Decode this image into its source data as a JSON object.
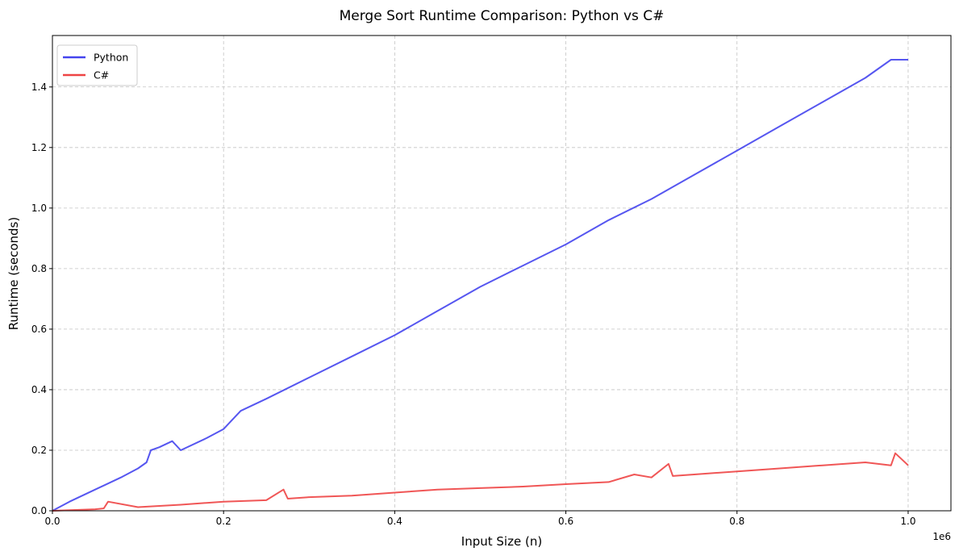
{
  "chart_data": {
    "type": "line",
    "title": "Merge Sort Runtime Comparison: Python vs C#",
    "xlabel": "Input Size (n)",
    "ylabel": "Runtime (seconds)",
    "x_offset_label": "1e6",
    "xlim": [
      0,
      1.05
    ],
    "ylim": [
      0,
      1.57
    ],
    "x_ticks": [
      0.0,
      0.2,
      0.4,
      0.6,
      0.8,
      1.0
    ],
    "x_tick_labels": [
      "0.0",
      "0.2",
      "0.4",
      "0.6",
      "0.8",
      "1.0"
    ],
    "y_ticks": [
      0.0,
      0.2,
      0.4,
      0.6,
      0.8,
      1.0,
      1.2,
      1.4
    ],
    "y_tick_labels": [
      "0.0",
      "0.2",
      "0.4",
      "0.6",
      "0.8",
      "1.0",
      "1.2",
      "1.4"
    ],
    "grid": true,
    "legend_position": "top-left",
    "series": [
      {
        "name": "Python",
        "color": "#4444ee",
        "x": [
          0.0,
          0.02,
          0.05,
          0.08,
          0.1,
          0.11,
          0.115,
          0.125,
          0.14,
          0.15,
          0.18,
          0.2,
          0.22,
          0.25,
          0.3,
          0.35,
          0.4,
          0.45,
          0.5,
          0.55,
          0.6,
          0.65,
          0.7,
          0.75,
          0.8,
          0.85,
          0.9,
          0.95,
          0.98,
          1.0
        ],
        "values": [
          0.0,
          0.03,
          0.07,
          0.11,
          0.14,
          0.16,
          0.2,
          0.21,
          0.23,
          0.2,
          0.24,
          0.27,
          0.33,
          0.37,
          0.44,
          0.51,
          0.58,
          0.66,
          0.74,
          0.81,
          0.88,
          0.96,
          1.03,
          1.11,
          1.19,
          1.27,
          1.35,
          1.43,
          1.49,
          1.49
        ]
      },
      {
        "name": "C#",
        "color": "#ee4444",
        "x": [
          0.0,
          0.05,
          0.06,
          0.065,
          0.1,
          0.15,
          0.2,
          0.25,
          0.27,
          0.275,
          0.3,
          0.35,
          0.4,
          0.45,
          0.5,
          0.55,
          0.6,
          0.65,
          0.68,
          0.7,
          0.72,
          0.725,
          0.75,
          0.8,
          0.85,
          0.9,
          0.95,
          0.98,
          0.985,
          1.0
        ],
        "values": [
          0.0,
          0.005,
          0.008,
          0.03,
          0.012,
          0.02,
          0.03,
          0.035,
          0.07,
          0.04,
          0.045,
          0.05,
          0.06,
          0.07,
          0.075,
          0.08,
          0.088,
          0.095,
          0.12,
          0.11,
          0.155,
          0.115,
          0.12,
          0.13,
          0.14,
          0.15,
          0.16,
          0.15,
          0.19,
          0.15
        ]
      }
    ]
  }
}
